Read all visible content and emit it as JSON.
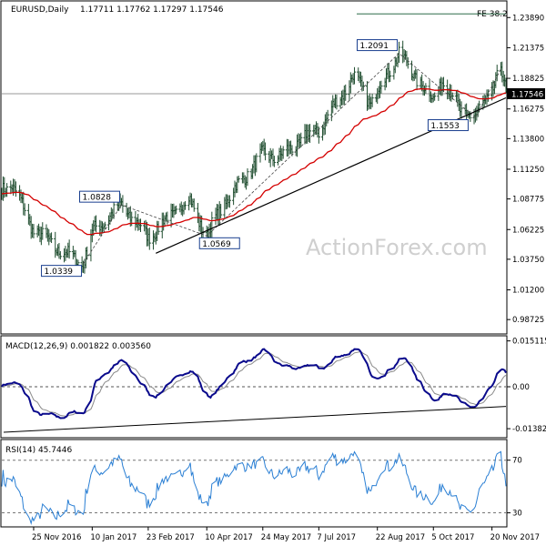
{
  "chart_data": [
    {
      "type": "ohlc",
      "title": "EURUSD,Daily",
      "ohlc_header": "1.17711 1.17762 1.17297 1.17546",
      "last_price": 1.17546,
      "last_price_label": "1.17546",
      "ylim": [
        0.976,
        1.252
      ],
      "y_ticks": [
        "1.23890",
        "1.21375",
        "1.18825",
        "1.16275",
        "1.13800",
        "1.11250",
        "1.08775",
        "1.06225",
        "1.03750",
        "1.01200",
        "0.98725"
      ],
      "x_ticks": [
        "25 Nov 2016",
        "10 Jan 2017",
        "23 Feb 2017",
        "10 Apr 2017",
        "24 May 2017",
        "7 Jul 2017",
        "22 Aug 2017",
        "5 Oct 2017",
        "20 Nov 2017"
      ],
      "fibo_label": "FE 38.2",
      "annotations": [
        {
          "label": "1.0339",
          "value": 1.0339,
          "date": "3 Jan 2017"
        },
        {
          "label": "1.0828",
          "value": 1.0828,
          "date": "2 Feb 2017"
        },
        {
          "label": "1.0569",
          "value": 1.0569,
          "date": "10 Apr 2017"
        },
        {
          "label": "1.2091",
          "value": 1.2091,
          "date": "8 Sep 2017"
        },
        {
          "label": "1.1553",
          "value": 1.1553,
          "date": "7 Nov 2017"
        }
      ],
      "trendlines": [
        {
          "from": {
            "date": "1 Mar 2017",
            "value": 1.0425
          },
          "to": {
            "date": "1 Dec 2017",
            "value": 1.172
          }
        }
      ],
      "series": [
        {
          "name": "EMA",
          "color": "#d40000"
        }
      ],
      "watermark": "ActionForex.com"
    },
    {
      "type": "line",
      "title": "MACD(12,26,9) 0.001822 0.003560",
      "ylim": [
        -0.0165,
        0.0165
      ],
      "y_ticks": [
        "0.015115",
        "0.00",
        "-0.013825"
      ],
      "series": [
        {
          "name": "MACD",
          "color": "#0a0a8c"
        },
        {
          "name": "Signal",
          "color": "#8a8a8a"
        }
      ]
    },
    {
      "type": "line",
      "title": "RSI(14) 45.7446",
      "ylim": [
        20,
        85
      ],
      "y_ticks": [
        "70",
        "30"
      ],
      "series": [
        {
          "name": "RSI",
          "color": "#2a7fd4"
        }
      ]
    }
  ]
}
